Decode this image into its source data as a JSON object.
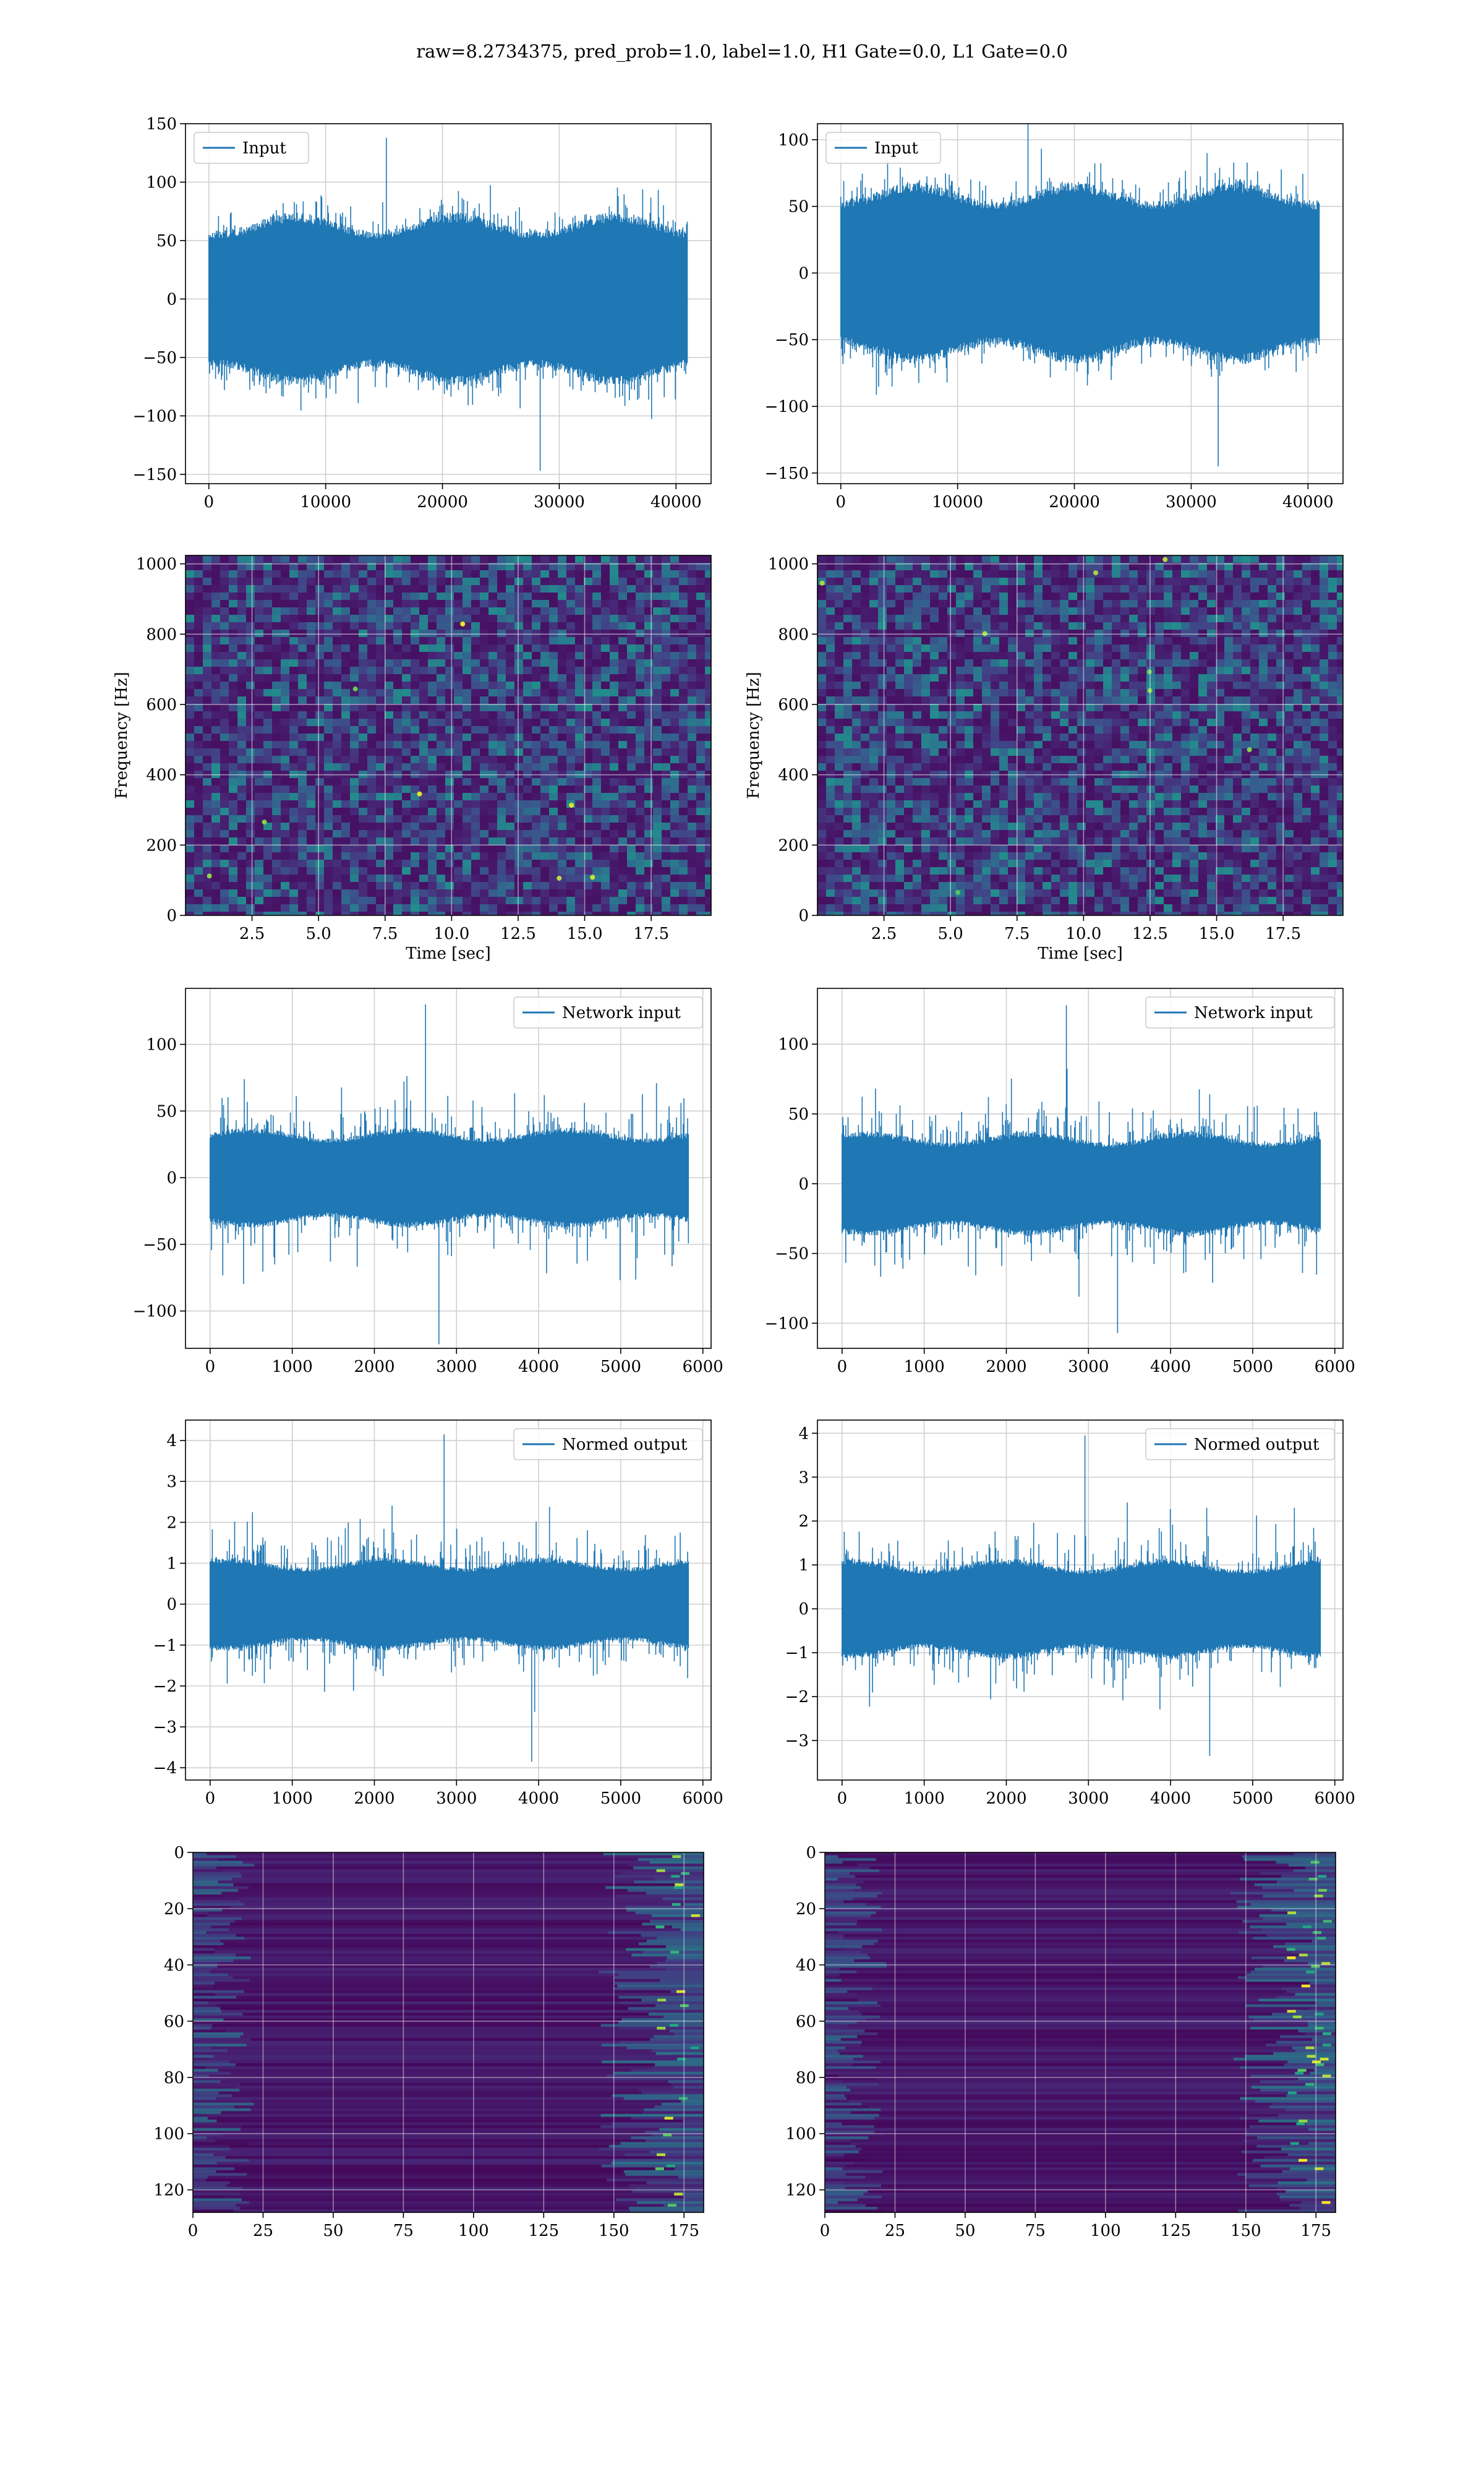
{
  "figure": {
    "suptitle": "raw=8.2734375, pred_prob=1.0, label=1.0, H1 Gate=0.0, L1 Gate=0.0"
  },
  "colors": {
    "line": "#1f77b4",
    "grid": "#d0d0d0",
    "viridis_bg": "#440154",
    "viridis_mid": "#3b528b",
    "viridis_hi": "#21918c",
    "viridis_top": "#fde725"
  },
  "chart_data": [
    {
      "id": "input-h1",
      "type": "line",
      "legend": "Input",
      "legend_loc": "upper left",
      "xlim": [
        -2000,
        43000
      ],
      "ylim": [
        -158,
        150
      ],
      "xticks": [
        0,
        10000,
        20000,
        30000,
        40000
      ],
      "yticks": [
        -150,
        -100,
        -50,
        0,
        50,
        100,
        150
      ],
      "signal": {
        "n_samples": 40960,
        "core_amplitude": 65,
        "peak_amplitude": 138,
        "min_value": -147
      }
    },
    {
      "id": "input-l1",
      "type": "line",
      "legend": "Input",
      "legend_loc": "upper left",
      "xlim": [
        -2000,
        43000
      ],
      "ylim": [
        -158,
        112
      ],
      "xticks": [
        0,
        10000,
        20000,
        30000,
        40000
      ],
      "yticks": [
        -150,
        -100,
        -50,
        0,
        50,
        100
      ],
      "signal": {
        "n_samples": 40960,
        "core_amplitude": 60,
        "peak_amplitude": 120,
        "min_value": -145
      }
    },
    {
      "id": "spectrogram-h1",
      "type": "heatmap",
      "colormap": "viridis",
      "xlim": [
        0,
        19.75
      ],
      "ylim": [
        0,
        1024
      ],
      "xticks": [
        2.5,
        5.0,
        7.5,
        10.0,
        12.5,
        15.0,
        17.5
      ],
      "yticks": [
        0,
        200,
        400,
        600,
        800,
        1000
      ],
      "xlabel": "Time [sec]",
      "ylabel": "Frequency [Hz]"
    },
    {
      "id": "spectrogram-l1",
      "type": "heatmap",
      "colormap": "viridis",
      "xlim": [
        0,
        19.75
      ],
      "ylim": [
        0,
        1024
      ],
      "xticks": [
        2.5,
        5.0,
        7.5,
        10.0,
        12.5,
        15.0,
        17.5
      ],
      "yticks": [
        0,
        200,
        400,
        600,
        800,
        1000
      ],
      "xlabel": "Time [sec]",
      "ylabel": "Frequency [Hz]"
    },
    {
      "id": "network-input-h1",
      "type": "line",
      "legend": "Network input",
      "legend_loc": "upper right",
      "xlim": [
        -300,
        6100
      ],
      "ylim": [
        -128,
        142
      ],
      "xticks": [
        0,
        1000,
        2000,
        3000,
        4000,
        5000,
        6000
      ],
      "yticks": [
        -100,
        -50,
        0,
        50,
        100
      ],
      "signal": {
        "n_samples": 5824,
        "core_amplitude": 33,
        "peak_amplitude": 130,
        "min_value": -125
      }
    },
    {
      "id": "network-input-l1",
      "type": "line",
      "legend": "Network input",
      "legend_loc": "upper right",
      "xlim": [
        -300,
        6100
      ],
      "ylim": [
        -118,
        140
      ],
      "xticks": [
        0,
        1000,
        2000,
        3000,
        4000,
        5000,
        6000
      ],
      "yticks": [
        -100,
        -50,
        0,
        50,
        100
      ],
      "signal": {
        "n_samples": 5824,
        "core_amplitude": 33,
        "peak_amplitude": 128,
        "min_value": -107
      }
    },
    {
      "id": "normed-output-h1",
      "type": "line",
      "legend": "Normed output",
      "legend_loc": "upper right",
      "xlim": [
        -300,
        6100
      ],
      "ylim": [
        -4.3,
        4.5
      ],
      "xticks": [
        0,
        1000,
        2000,
        3000,
        4000,
        5000,
        6000
      ],
      "yticks": [
        -4,
        -3,
        -2,
        -1,
        0,
        1,
        2,
        3,
        4
      ],
      "signal": {
        "n_samples": 5824,
        "core_amplitude": 1.0,
        "peak_amplitude": 4.15,
        "min_value": -3.85
      }
    },
    {
      "id": "normed-output-l1",
      "type": "line",
      "legend": "Normed output",
      "legend_loc": "upper right",
      "xlim": [
        -300,
        6100
      ],
      "ylim": [
        -3.9,
        4.3
      ],
      "xticks": [
        0,
        1000,
        2000,
        3000,
        4000,
        5000,
        6000
      ],
      "yticks": [
        -3,
        -2,
        -1,
        0,
        1,
        2,
        3,
        4
      ],
      "signal": {
        "n_samples": 5824,
        "core_amplitude": 1.0,
        "peak_amplitude": 3.95,
        "min_value": -3.35
      }
    },
    {
      "id": "feature-map-h1",
      "type": "heatmap",
      "colormap": "viridis",
      "xlim": [
        0,
        182
      ],
      "ylim": [
        128,
        0
      ],
      "xticks": [
        0,
        25,
        50,
        75,
        100,
        125,
        150,
        175
      ],
      "yticks": [
        0,
        20,
        40,
        60,
        80,
        100,
        120
      ],
      "rows": 128,
      "cols": 182
    },
    {
      "id": "feature-map-l1",
      "type": "heatmap",
      "colormap": "viridis",
      "xlim": [
        0,
        182
      ],
      "ylim": [
        128,
        0
      ],
      "xticks": [
        0,
        25,
        50,
        75,
        100,
        125,
        150,
        175
      ],
      "yticks": [
        0,
        20,
        40,
        60,
        80,
        100,
        120
      ],
      "rows": 128,
      "cols": 182
    }
  ]
}
